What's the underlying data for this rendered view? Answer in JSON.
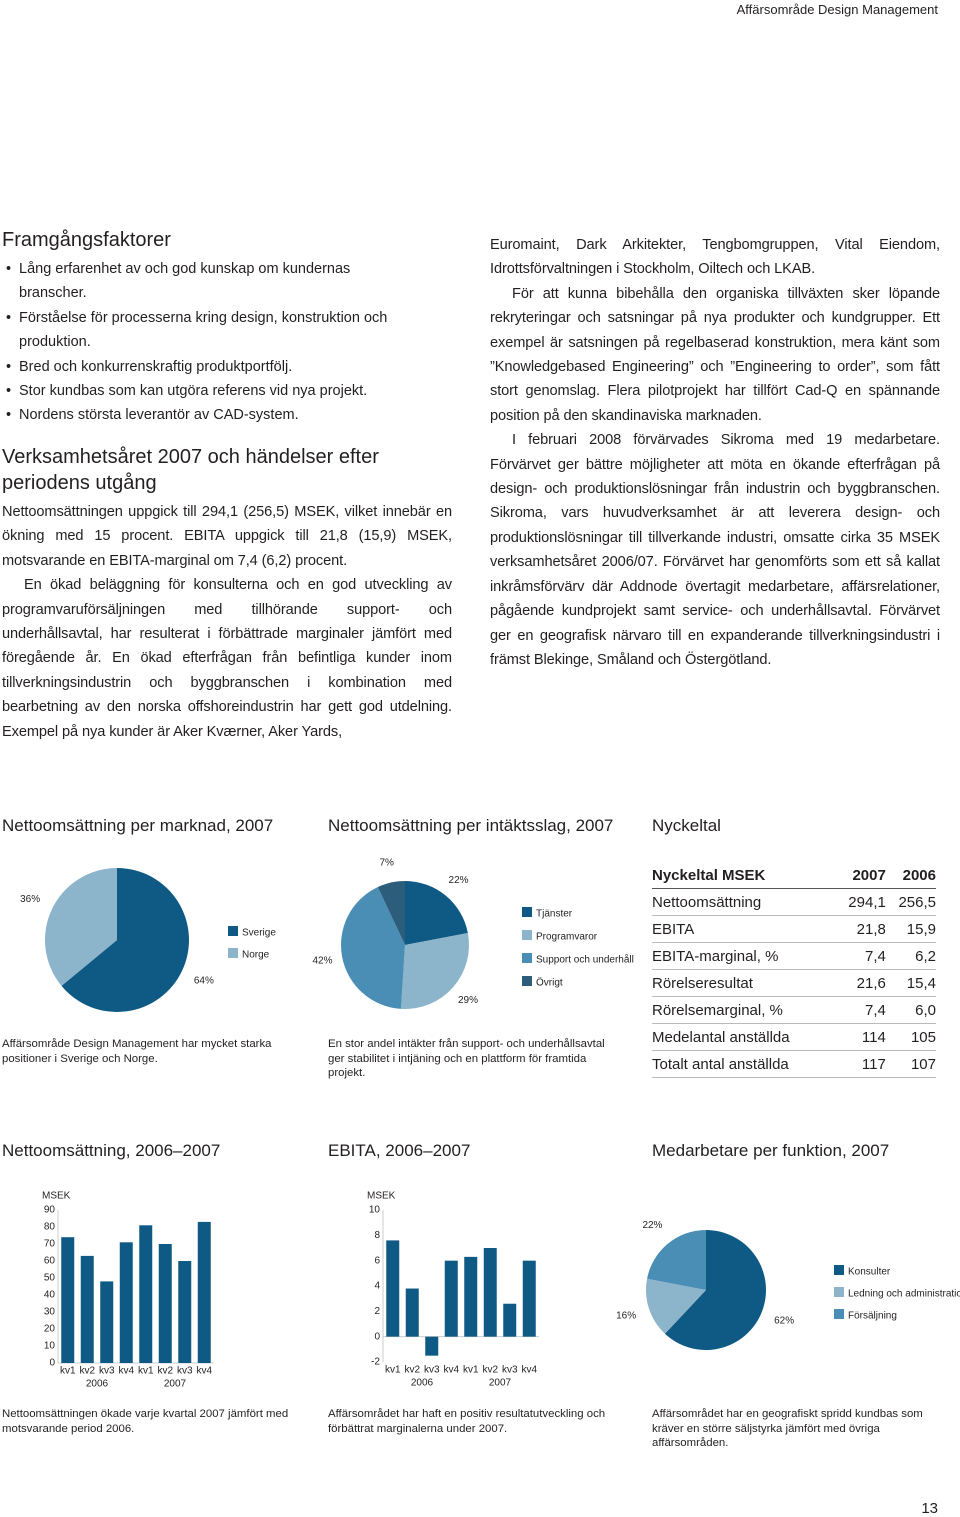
{
  "header": {
    "running_title": "Affärsområde Design Management",
    "page_number": "13"
  },
  "success_factors": {
    "heading": "Framgångsfaktorer",
    "bullets": [
      "Lång erfarenhet av och god kunskap om kundernas branscher.",
      "Förståelse för processerna kring design, konstruktion och produktion.",
      "Bred och konkurrenskraftig produktportfölj.",
      "Stor kundbas som kan utgöra referens vid nya projekt.",
      "Nordens största leverantör av CAD-system."
    ]
  },
  "year": {
    "heading": "Verksamhetsåret 2007 och händelser efter periodens utgång",
    "left_paragraphs": [
      "Nettoomsättningen uppgick till 294,1 (256,5) MSEK, vilket innebär en ökning med 15 procent. EBITA uppgick till 21,8 (15,9) MSEK, motsvarande en EBITA-marginal om 7,4 (6,2) procent.",
      "En ökad beläggning för konsulterna och en god utveckling av programvaruförsäljningen med tillhörande support- och underhållsavtal, har resulterat i förbättrade marginaler jämfört med föregående år. En ökad efterfrågan från befintliga kunder inom tillverkningsindustrin och byggbranschen i kombination med bearbetning av den norska offshoreindustrin har gett god utdelning. Exempel på nya kunder är Aker Kværner, Aker Yards,"
    ],
    "right_paragraphs": [
      "Euromaint, Dark Arkitekter, Tengbomgruppen, Vital Eiendom, Idrottsförvaltningen i Stockholm, Oiltech och LKAB.",
      "För att kunna bibehålla den organiska tillväxten sker löpande rekryteringar och satsningar på nya produkter och kundgrupper. Ett exempel är satsningen på regelbaserad konstruktion, mera känt som ”Knowledgebased Engineering” och ”Engineering to order”, som fått stort genomslag. Flera pilotprojekt har tillfört Cad-Q en spännande position på den skandinaviska marknaden.",
      "I februari 2008 förvärvades Sikroma med 19 medarbetare. Förvärvet ger bättre möjligheter att möta en ökande efterfrågan på design- och produktionslösningar från industrin och byggbranschen. Sikroma, vars huvudverksamhet är att leverera design- och produktionslösningar till tillverkande industri, omsatte cirka 35 MSEK verksamhetsåret 2006/07. Förvärvet har genomförts som ett så kallat inkråmsförvärv där Addnode övertagit medarbetare, affärsrelationer, pågående kundprojekt samt service- och underhållsavtal. Förvärvet ger en geografisk närvaro till en expanderande tillverkningsindustri i främst Blekinge, Småland och Östergötland."
    ]
  },
  "key_figures": {
    "heading": "Nyckeltal",
    "columns": [
      "Nyckeltal MSEK",
      "2007",
      "2006"
    ],
    "rows": [
      [
        "Nettoomsättning",
        "294,1",
        "256,5"
      ],
      [
        "EBITA",
        "21,8",
        "15,9"
      ],
      [
        "EBITA-marginal, %",
        "7,4",
        "6,2"
      ],
      [
        "Rörelseresultat",
        "21,6",
        "15,4"
      ],
      [
        "Rörelsemarginal, %",
        "7,4",
        "6,0"
      ],
      [
        "Medelantal anställda",
        "114",
        "105"
      ],
      [
        "Totalt antal anställda",
        "117",
        "107"
      ]
    ]
  },
  "chart_data": [
    {
      "type": "pie",
      "title": "Nettoomsättning per marknad, 2007",
      "categories": [
        "Sverige",
        "Norge"
      ],
      "values": [
        64,
        36
      ],
      "value_labels": [
        "64%",
        "36%"
      ],
      "colors": [
        "#0e5a85",
        "#8cb4cb"
      ],
      "legend": "right",
      "caption": "Affärsområde Design Management har mycket starka positioner i Sverige och Norge."
    },
    {
      "type": "pie",
      "title": "Nettoomsättning per intäktsslag, 2007",
      "categories": [
        "Tjänster",
        "Programvaror",
        "Support och underhåll",
        "Övrigt"
      ],
      "values": [
        22,
        29,
        42,
        7
      ],
      "value_labels": [
        "22%",
        "29%",
        "42%",
        "7%"
      ],
      "colors": [
        "#0e5a85",
        "#8cb4cb",
        "#4a8eb5",
        "#2c5d7a"
      ],
      "legend": "right",
      "caption": "En stor andel intäkter från support- och underhållsavtal ger stabilitet i intjäning och en plattform för framtida projekt."
    },
    {
      "type": "bar",
      "title": "Nettoomsättning, 2006–2007",
      "ylabel": "MSEK",
      "categories": [
        "kv1",
        "kv2",
        "kv3",
        "kv4",
        "kv1",
        "kv2",
        "kv3",
        "kv4"
      ],
      "groups": [
        "2006",
        "2007"
      ],
      "values": [
        74,
        63,
        48,
        71,
        81,
        70,
        60,
        83
      ],
      "color": "#0e5a85",
      "ylim": [
        0,
        90
      ],
      "yticks": [
        0,
        10,
        20,
        30,
        40,
        50,
        60,
        70,
        80,
        90
      ],
      "caption": "Nettoomsättningen ökade varje kvartal 2007 jämfört med motsvarande period 2006."
    },
    {
      "type": "bar",
      "title": "EBITA, 2006–2007",
      "ylabel": "MSEK",
      "categories": [
        "kv1",
        "kv2",
        "kv3",
        "kv4",
        "kv1",
        "kv2",
        "kv3",
        "kv4"
      ],
      "groups": [
        "2006",
        "2007"
      ],
      "values": [
        7.6,
        3.8,
        -1.5,
        6.0,
        6.3,
        7.0,
        2.6,
        6.0
      ],
      "color": "#0e5a85",
      "ylim": [
        -2,
        10
      ],
      "yticks": [
        -2,
        0,
        2,
        4,
        6,
        8,
        10
      ],
      "caption": "Affärsområdet har haft en positiv resultatutveckling och förbättrat marginalerna under 2007."
    },
    {
      "type": "pie",
      "title": "Medarbetare per funktion, 2007",
      "categories": [
        "Konsulter",
        "Ledning och administration",
        "Försäljning"
      ],
      "values": [
        62,
        16,
        22
      ],
      "value_labels": [
        "62%",
        "16%",
        "22%"
      ],
      "colors": [
        "#0e5a85",
        "#8cb4cb",
        "#4a8eb5"
      ],
      "legend": "right",
      "caption": "Affärsområdet har en geografiskt spridd kundbas som kräver en större säljstyrka jämfört med övriga affärsområden."
    }
  ]
}
